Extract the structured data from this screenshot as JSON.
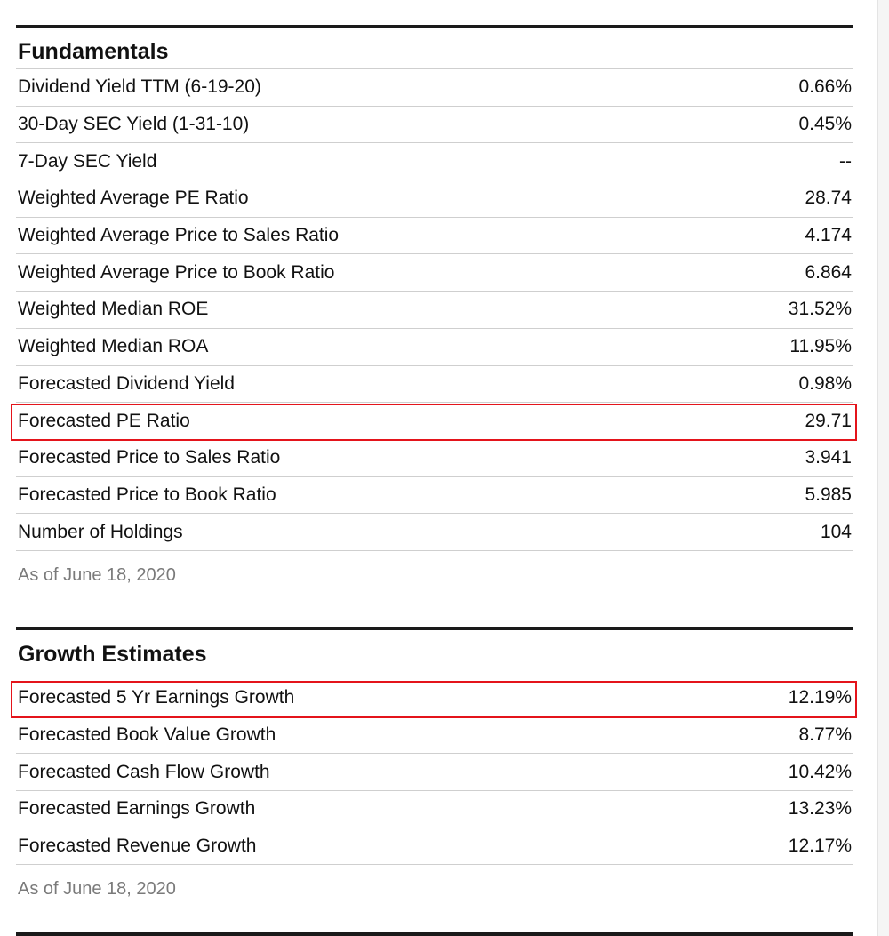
{
  "fundamentals": {
    "title": "Fundamentals",
    "rows": [
      {
        "label": "Dividend Yield TTM (6-19-20)",
        "value": "0.66%"
      },
      {
        "label": "30-Day SEC Yield (1-31-10)",
        "value": "0.45%"
      },
      {
        "label": "7-Day SEC Yield",
        "value": "--"
      },
      {
        "label": "Weighted Average PE Ratio",
        "value": "28.74"
      },
      {
        "label": "Weighted Average Price to Sales Ratio",
        "value": "4.174"
      },
      {
        "label": "Weighted Average Price to Book Ratio",
        "value": "6.864"
      },
      {
        "label": "Weighted Median ROE",
        "value": "31.52%"
      },
      {
        "label": "Weighted Median ROA",
        "value": "11.95%"
      },
      {
        "label": "Forecasted Dividend Yield",
        "value": "0.98%"
      },
      {
        "label": "Forecasted PE Ratio",
        "value": "29.71"
      },
      {
        "label": "Forecasted Price to Sales Ratio",
        "value": "3.941"
      },
      {
        "label": "Forecasted Price to Book Ratio",
        "value": "5.985"
      },
      {
        "label": "Number of Holdings",
        "value": "104"
      }
    ],
    "as_of": "As of June 18, 2020"
  },
  "growth": {
    "title": "Growth Estimates",
    "rows": [
      {
        "label": "Forecasted 5 Yr Earnings Growth",
        "value": "12.19%"
      },
      {
        "label": "Forecasted Book Value Growth",
        "value": "8.77%"
      },
      {
        "label": "Forecasted Cash Flow Growth",
        "value": "10.42%"
      },
      {
        "label": "Forecasted Earnings Growth",
        "value": "13.23%"
      },
      {
        "label": "Forecasted Revenue Growth",
        "value": "12.17%"
      }
    ],
    "as_of": "As of June 18, 2020"
  },
  "colors": {
    "highlight_border": "#e4141b",
    "rule": "#1a1a1a",
    "muted_text": "#7a7a7a"
  }
}
